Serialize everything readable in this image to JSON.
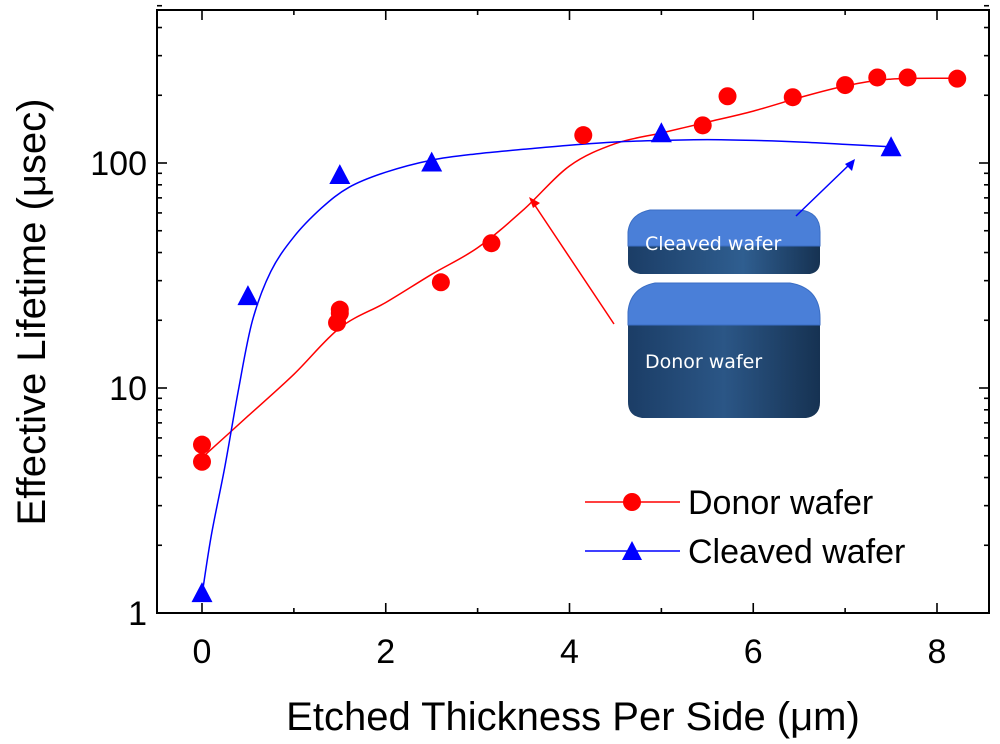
{
  "chart_data": {
    "type": "scatter",
    "xlabel": "Etched Thickness Per Side (μm)",
    "ylabel": "Effective Lifetime (μsec)",
    "xlim": [
      -0.5,
      8.5
    ],
    "ylim": [
      1,
      600
    ],
    "yscale": "log",
    "x_ticks": [
      0,
      2,
      4,
      6,
      8
    ],
    "x_tick_labels": [
      "0",
      "2",
      "4",
      "6",
      "8"
    ],
    "y_ticks": [
      1,
      10,
      100
    ],
    "y_tick_labels": [
      "1",
      "10",
      "100"
    ],
    "legend_position": "bottom-right",
    "series": [
      {
        "name": "Donor wafer",
        "color": "#ff0000",
        "marker": "circle",
        "points": [
          [
            0,
            5.6
          ],
          [
            0,
            4.7
          ],
          [
            1.47,
            19.5
          ],
          [
            1.5,
            21.5
          ],
          [
            1.5,
            22.3
          ],
          [
            2.6,
            29.5
          ],
          [
            3.15,
            44
          ],
          [
            4.15,
            133
          ],
          [
            5.45,
            147
          ],
          [
            5.72,
            198
          ],
          [
            6.43,
            196
          ],
          [
            7.0,
            222
          ],
          [
            7.35,
            240
          ],
          [
            7.68,
            240
          ],
          [
            8.22,
            237
          ]
        ],
        "fit": [
          [
            0,
            4.9
          ],
          [
            0.5,
            7.5
          ],
          [
            1.0,
            11.5
          ],
          [
            1.5,
            18.5
          ],
          [
            2.0,
            24
          ],
          [
            2.5,
            32
          ],
          [
            3.0,
            42
          ],
          [
            3.5,
            62
          ],
          [
            4.0,
            97
          ],
          [
            4.5,
            122
          ],
          [
            5.0,
            136
          ],
          [
            5.5,
            152
          ],
          [
            6.0,
            170
          ],
          [
            6.5,
            195
          ],
          [
            7.0,
            220
          ],
          [
            7.5,
            236
          ],
          [
            8.22,
            238
          ]
        ]
      },
      {
        "name": "Cleaved wafer",
        "color": "#0000ff",
        "marker": "triangle",
        "points": [
          [
            0,
            1.22
          ],
          [
            0.5,
            25.5
          ],
          [
            1.5,
            88
          ],
          [
            2.5,
            100
          ],
          [
            5.0,
            135
          ],
          [
            7.5,
            117
          ]
        ],
        "fit": [
          [
            0,
            1.2
          ],
          [
            0.1,
            2.2
          ],
          [
            0.25,
            4.5
          ],
          [
            0.4,
            10
          ],
          [
            0.55,
            20
          ],
          [
            0.75,
            33
          ],
          [
            1.0,
            47
          ],
          [
            1.3,
            63
          ],
          [
            1.6,
            78
          ],
          [
            2.0,
            91
          ],
          [
            2.5,
            103
          ],
          [
            3.0,
            110
          ],
          [
            3.5,
            115
          ],
          [
            4.0,
            120
          ],
          [
            4.5,
            124
          ],
          [
            5.0,
            126
          ],
          [
            5.5,
            127
          ],
          [
            6.0,
            126
          ],
          [
            6.5,
            124
          ],
          [
            7.0,
            121
          ],
          [
            7.5,
            118
          ]
        ]
      }
    ],
    "annotations": [
      "Cleaved wafer",
      "Donor wafer"
    ]
  },
  "colors": {
    "box_top": "#4a7fd8",
    "box_top_edge": "#2a5cae",
    "box_side": "#17375e",
    "box_side_light": "#2f5d8f",
    "box_front": "#1c4478"
  }
}
